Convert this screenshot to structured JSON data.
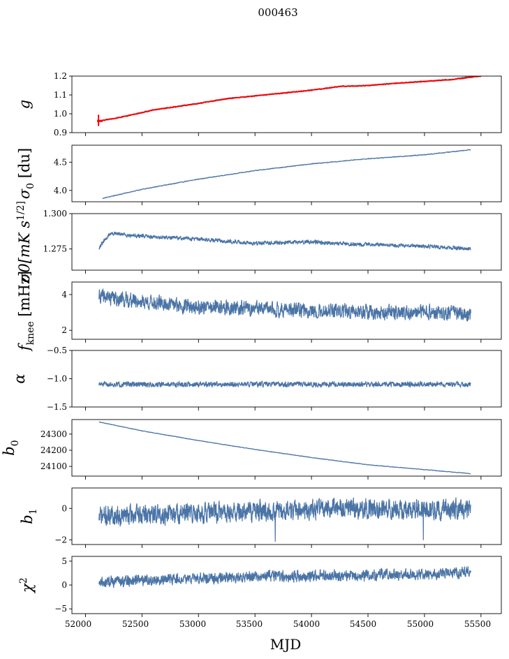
{
  "figure": {
    "title": "000463",
    "xlabel": "MJD",
    "x_ticks": [
      "52000",
      "52500",
      "53000",
      "53500",
      "54000",
      "54500",
      "55000",
      "55500"
    ]
  },
  "colors": {
    "series": "#4a74a6",
    "overlay": "#ff0000",
    "axes": "#000000"
  },
  "chart_data": [
    {
      "type": "line",
      "ylabel": "g",
      "xlim": [
        51880,
        55680
      ],
      "ylim": [
        0.9,
        1.2
      ],
      "yticks": [
        0.9,
        1.0,
        1.1,
        1.2
      ],
      "ytick_labels": [
        "0.9",
        "1.0",
        "1.1",
        "1.2"
      ],
      "series": [
        {
          "x": [
            52120,
            52300,
            52600,
            53000,
            53250,
            53500,
            54000,
            54250,
            54500,
            54750,
            55000,
            55250,
            55410
          ],
          "y": [
            0.962,
            0.98,
            1.02,
            1.055,
            1.08,
            1.095,
            1.125,
            1.145,
            1.15,
            1.162,
            1.172,
            1.182,
            1.198
          ],
          "noise": 0.003,
          "seed": 11
        },
        {
          "x": [
            52120,
            52300,
            52600,
            53000,
            53250,
            53500,
            54000,
            54250,
            54500,
            54750,
            55000,
            55250,
            55500
          ],
          "y": [
            0.962,
            0.98,
            1.02,
            1.055,
            1.08,
            1.095,
            1.125,
            1.145,
            1.15,
            1.162,
            1.172,
            1.182,
            1.2
          ],
          "noise": 0.002,
          "seed": 12,
          "spike": {
            "x": 52115,
            "y": [
              0.935,
              0.995
            ]
          }
        }
      ]
    },
    {
      "type": "line",
      "ylabel": "σ0 [du]",
      "xlim": [
        51880,
        55680
      ],
      "ylim": [
        3.8,
        4.8
      ],
      "yticks": [
        4.0,
        4.5
      ],
      "ytick_labels": [
        "4.0",
        "4.5"
      ],
      "series": [
        {
          "x": [
            52150,
            52500,
            53000,
            53500,
            54000,
            54500,
            55000,
            55410
          ],
          "y": [
            3.86,
            4.02,
            4.2,
            4.35,
            4.47,
            4.56,
            4.63,
            4.72
          ],
          "noise": 0.006,
          "seed": 21
        }
      ]
    },
    {
      "type": "line",
      "ylabel": "σ0[mK s^1/2]",
      "xlim": [
        51880,
        55680
      ],
      "ylim": [
        1.26,
        1.3
      ],
      "yticks": [
        1.275,
        1.3
      ],
      "ytick_labels": [
        "1.275",
        "1.300"
      ],
      "series": [
        {
          "x": [
            52120,
            52220,
            52500,
            53000,
            53500,
            54000,
            54500,
            55000,
            55410
          ],
          "y": [
            1.276,
            1.286,
            1.284,
            1.282,
            1.279,
            1.28,
            1.278,
            1.277,
            1.275
          ],
          "noise": 0.0012,
          "seed": 31
        }
      ]
    },
    {
      "type": "line",
      "ylabel": "f_knee [mHz]",
      "xlim": [
        51880,
        55680
      ],
      "ylim": [
        1.5,
        4.7
      ],
      "yticks": [
        2,
        4
      ],
      "ytick_labels": [
        "2",
        "4"
      ],
      "series": [
        {
          "x": [
            52120,
            52500,
            53000,
            53500,
            54000,
            54500,
            55000,
            55410
          ],
          "y": [
            3.9,
            3.6,
            3.3,
            3.2,
            3.1,
            3.0,
            3.0,
            2.9
          ],
          "noise": 0.35,
          "seed": 41
        }
      ]
    },
    {
      "type": "line",
      "ylabel": "α",
      "xlim": [
        51880,
        55680
      ],
      "ylim": [
        -1.5,
        -0.5
      ],
      "yticks": [
        -1.5,
        -1.0,
        -0.5
      ],
      "ytick_labels": [
        "−1.5",
        "−1.0",
        "−0.5"
      ],
      "series": [
        {
          "x": [
            52120,
            55410
          ],
          "y": [
            -1.1,
            -1.1
          ],
          "noise": 0.04,
          "seed": 51
        }
      ]
    },
    {
      "type": "line",
      "ylabel": "b0",
      "xlim": [
        51880,
        55680
      ],
      "ylim": [
        24040,
        24390
      ],
      "yticks": [
        24100,
        24200,
        24300
      ],
      "ytick_labels": [
        "24100",
        "24200",
        "24300"
      ],
      "series": [
        {
          "x": [
            52120,
            52500,
            53000,
            53500,
            54000,
            54500,
            55000,
            55410
          ],
          "y": [
            24375,
            24320,
            24260,
            24205,
            24155,
            24110,
            24080,
            24055
          ],
          "noise": 1.5,
          "seed": 61
        }
      ]
    },
    {
      "type": "line",
      "ylabel": "b1",
      "xlim": [
        51880,
        55680
      ],
      "ylim": [
        -2.3,
        1.3
      ],
      "yticks": [
        -2,
        0
      ],
      "ytick_labels": [
        "−2",
        "0"
      ],
      "series": [
        {
          "x": [
            52120,
            52500,
            53000,
            53500,
            54000,
            54500,
            55000,
            55410
          ],
          "y": [
            -0.5,
            -0.4,
            -0.3,
            -0.2,
            -0.1,
            0.0,
            0.0,
            -0.1
          ],
          "noise": 0.55,
          "seed": 71,
          "dips": [
            [
              53680,
              -2.1
            ],
            [
              54990,
              -2.0
            ]
          ]
        }
      ]
    },
    {
      "type": "line",
      "ylabel": "χ²",
      "xlim": [
        51880,
        55680
      ],
      "ylim": [
        -6,
        6
      ],
      "yticks": [
        -5,
        0,
        5
      ],
      "ytick_labels": [
        "−5",
        "0",
        "5"
      ],
      "series": [
        {
          "x": [
            52120,
            52500,
            53000,
            53500,
            54000,
            54500,
            55000,
            55410
          ],
          "y": [
            0.6,
            1.0,
            1.4,
            1.7,
            1.9,
            2.0,
            2.3,
            2.6
          ],
          "noise": 1.0,
          "seed": 81
        }
      ]
    }
  ]
}
